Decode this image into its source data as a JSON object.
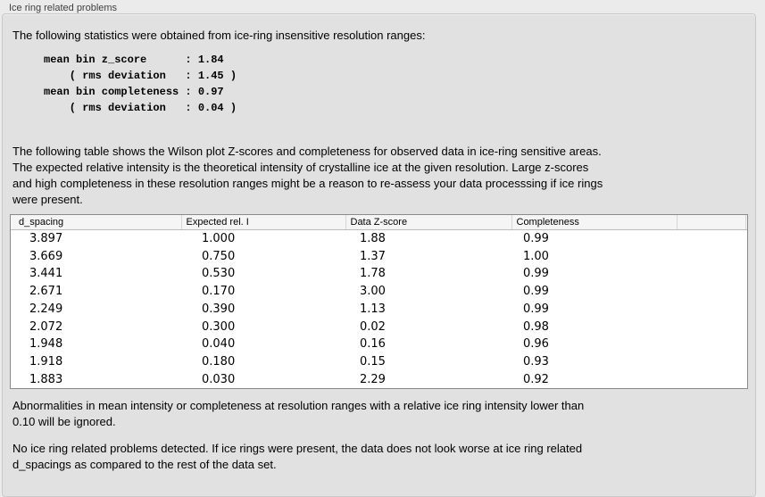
{
  "title": "Ice ring related problems",
  "intro": "The following statistics were obtained from ice-ring insensitive resolution ranges:",
  "stats_block": "mean bin z_score      : 1.84\n    ( rms deviation   : 1.45 )\nmean bin completeness : 0.97\n    ( rms deviation   : 0.04 )",
  "stats": {
    "mean_bin_z_score": "1.84",
    "z_score_rms_deviation": "1.45",
    "mean_bin_completeness": "0.97",
    "completeness_rms_deviation": "0.04"
  },
  "table_intro": "The following table shows the Wilson plot Z-scores and completeness for observed data in ice-ring sensitive areas.\nThe expected relative intensity is the theoretical intensity of crystalline ice at the given resolution. Large z-scores\nand high completeness in these resolution ranges might be a reason to re-assess your data processsing if ice rings\nwere present.",
  "table": {
    "columns": [
      "d_spacing",
      "Expected rel. I",
      "Data Z-score",
      "Completeness"
    ],
    "rows": [
      [
        "3.897",
        "1.000",
        "1.88",
        "0.99"
      ],
      [
        "3.669",
        "0.750",
        "1.37",
        "1.00"
      ],
      [
        "3.441",
        "0.530",
        "1.78",
        "0.99"
      ],
      [
        "2.671",
        "0.170",
        "3.00",
        "0.99"
      ],
      [
        "2.249",
        "0.390",
        "1.13",
        "0.99"
      ],
      [
        "2.072",
        "0.300",
        "0.02",
        "0.98"
      ],
      [
        "1.948",
        "0.040",
        "0.16",
        "0.96"
      ],
      [
        "1.918",
        "0.180",
        "0.15",
        "0.93"
      ],
      [
        "1.883",
        "0.030",
        "2.29",
        "0.92"
      ]
    ]
  },
  "note_ignore": "Abnormalities in mean intensity or completeness at resolution ranges with a relative ice ring intensity lower than\n0.10 will be ignored.",
  "conclusion": "No ice ring related problems detected. If ice rings were present, the data does not look worse at ice ring related\nd_spacings as compared to the rest of the data set.",
  "colors": {
    "page_bg": "#ebebeb",
    "panel_bg": "#e1e1e1",
    "table_bg": "#ffffff",
    "table_header_bg": "#f5f5f5",
    "table_border": "#8a8a8a",
    "text": "#000000"
  }
}
